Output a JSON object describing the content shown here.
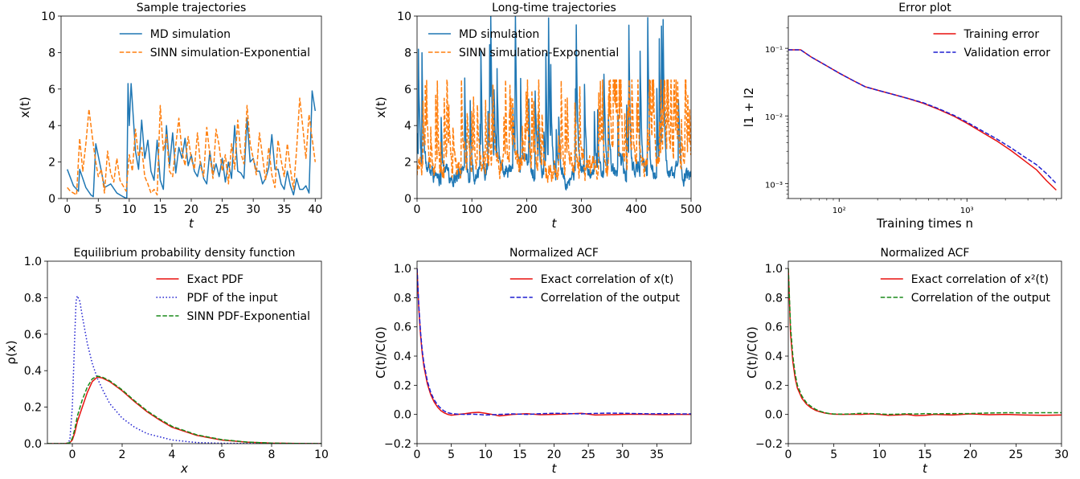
{
  "colors": {
    "md": "#1f77b4",
    "sinn": "#ff7f0e",
    "red": "#e8110f",
    "blue": "#1f1fd0",
    "green": "#1a8a1a"
  },
  "chart_data": [
    {
      "type": "line",
      "title": "Sample trajectories",
      "xlabel": "t",
      "ylabel": "x(t)",
      "xlim": [
        -1,
        41
      ],
      "ylim": [
        0,
        10
      ],
      "xticks": [
        0,
        5,
        10,
        15,
        20,
        25,
        30,
        35,
        40
      ],
      "yticks": [
        0,
        2,
        4,
        6,
        8,
        10
      ],
      "grid": false,
      "legend": "top-right",
      "series": [
        {
          "name": "MD simulation",
          "color": "md",
          "style": "solid",
          "x": [
            0,
            1,
            1.8,
            2,
            2.5,
            3,
            3.8,
            4.2,
            4.6,
            5.5,
            6,
            7,
            8,
            9,
            9.6,
            9.8,
            10,
            10.3,
            11,
            11.5,
            12,
            12.5,
            13,
            13.5,
            14,
            14.5,
            15,
            15.5,
            16,
            16.5,
            17,
            17.5,
            18,
            18.5,
            19,
            19.5,
            20,
            20.5,
            21,
            21.5,
            22,
            22.5,
            23,
            23.5,
            24,
            24.5,
            25,
            25.5,
            26,
            26.5,
            27,
            27.5,
            28,
            28.5,
            29,
            29.5,
            30,
            30.5,
            31,
            31.5,
            32,
            32.5,
            33,
            33.5,
            34,
            34.5,
            35,
            35.5,
            36,
            36.5,
            37,
            37.5,
            38,
            38.5,
            39,
            39.5,
            40
          ],
          "y": [
            1.6,
            0.7,
            0.4,
            1.6,
            1.1,
            0.6,
            0.2,
            0.1,
            3.0,
            1.5,
            0.6,
            0.8,
            0.3,
            0.1,
            0.0,
            6.3,
            4.0,
            6.3,
            2.6,
            1.6,
            4.3,
            2.2,
            3.2,
            1.5,
            1.0,
            3.2,
            1.0,
            0.5,
            4.0,
            1.8,
            3.6,
            1.4,
            2.8,
            2.2,
            3.3,
            1.8,
            2.4,
            1.5,
            1.2,
            2.0,
            1.1,
            0.8,
            2.6,
            1.3,
            1.9,
            1.2,
            2.2,
            0.9,
            2.0,
            1.1,
            4.0,
            1.5,
            1.4,
            1.1,
            4.4,
            2.0,
            2.2,
            1.5,
            1.5,
            0.8,
            1.1,
            1.7,
            3.5,
            1.6,
            1.6,
            0.8,
            0.5,
            1.5,
            0.7,
            0.2,
            1.1,
            0.5,
            0.5,
            0.7,
            0.3,
            5.9,
            4.8
          ]
        },
        {
          "name": "SINN simulation-Exponential",
          "color": "sinn",
          "style": "dashed",
          "x": [
            0,
            0.5,
            1,
            1.5,
            2,
            2.5,
            3,
            3.5,
            4,
            4.5,
            5,
            5.5,
            6,
            6.5,
            7,
            7.5,
            8,
            8.5,
            9,
            9.5,
            10,
            10.5,
            11,
            11.5,
            12,
            12.5,
            13,
            13.5,
            14,
            14.5,
            15,
            15.5,
            16,
            16.5,
            17,
            17.5,
            18,
            18.5,
            19,
            19.5,
            20,
            20.5,
            21,
            21.5,
            22,
            22.5,
            23,
            23.5,
            24,
            24.5,
            25,
            25.5,
            26,
            26.5,
            27,
            27.5,
            28,
            28.5,
            29,
            29.5,
            30,
            30.5,
            31,
            31.5,
            32,
            32.5,
            33,
            33.5,
            34,
            34.5,
            35,
            35.5,
            36,
            36.5,
            37,
            37.5,
            38,
            38.5,
            39,
            39.5,
            40
          ],
          "y": [
            0.6,
            0.4,
            0.3,
            0.2,
            3.3,
            1.5,
            3.0,
            4.9,
            3.5,
            2.2,
            1.2,
            1.6,
            0.3,
            2.6,
            1.4,
            0.9,
            2.2,
            1.0,
            0.7,
            0.4,
            2.4,
            1.5,
            3.8,
            2.3,
            2.8,
            1.2,
            0.8,
            0.3,
            0.5,
            0.2,
            5.1,
            2.6,
            3.5,
            1.5,
            1.2,
            2.9,
            4.4,
            2.6,
            1.8,
            3.4,
            2.2,
            1.6,
            3.6,
            1.8,
            1.2,
            3.9,
            2.4,
            1.1,
            3.8,
            2.9,
            1.5,
            2.4,
            0.8,
            3.0,
            1.6,
            4.3,
            2.5,
            1.9,
            5.1,
            3.0,
            2.2,
            1.3,
            3.6,
            2.3,
            1.0,
            2.8,
            1.3,
            0.6,
            3.2,
            2.1,
            1.2,
            3.0,
            1.6,
            0.5,
            2.7,
            5.5,
            3.9,
            2.2,
            4.6,
            3.3,
            2.0
          ]
        }
      ]
    },
    {
      "type": "line",
      "title": "Long-time trajectories",
      "xlabel": "t",
      "ylabel": "x(t)",
      "xlim": [
        0,
        500
      ],
      "ylim": [
        0,
        10
      ],
      "xticks": [
        0,
        100,
        200,
        300,
        400,
        500
      ],
      "yticks": [
        0,
        2,
        4,
        6,
        8,
        10
      ],
      "grid": false,
      "legend": "top-left",
      "series": [
        {
          "name": "MD simulation",
          "color": "md",
          "style": "solid",
          "dense": "md"
        },
        {
          "name": "SINN simulation-Exponential",
          "color": "sinn",
          "style": "dashed",
          "dense": "sinn"
        }
      ]
    },
    {
      "type": "line",
      "title": "Error plot",
      "xlabel": "Training times n",
      "ylabel": "l1 + l2",
      "xscale": "log",
      "yscale": "log",
      "xlim": [
        40,
        5500
      ],
      "ylim": [
        0.0006,
        0.3
      ],
      "xticks": [
        100,
        1000
      ],
      "xticklabels": [
        "10²",
        "10³"
      ],
      "yticks": [
        0.001,
        0.01,
        0.1
      ],
      "yticklabels": [
        "10⁻³",
        "10⁻²",
        "10⁻¹"
      ],
      "grid": false,
      "legend": "top-right",
      "series": [
        {
          "name": "Training error",
          "color": "red",
          "style": "solid",
          "x": [
            40,
            50,
            60,
            80,
            100,
            130,
            160,
            200,
            260,
            350,
            450,
            600,
            800,
            1000,
            1300,
            1700,
            2200,
            2800,
            3500,
            4200,
            5000
          ],
          "y": [
            0.095,
            0.095,
            0.075,
            0.055,
            0.043,
            0.033,
            0.027,
            0.024,
            0.021,
            0.018,
            0.0155,
            0.0125,
            0.0098,
            0.0078,
            0.0058,
            0.0043,
            0.0031,
            0.0022,
            0.0016,
            0.0011,
            0.0008
          ]
        },
        {
          "name": "Validation error",
          "color": "blue",
          "style": "dashed",
          "x": [
            40,
            50,
            60,
            80,
            100,
            130,
            160,
            200,
            260,
            350,
            450,
            600,
            800,
            1000,
            1300,
            1700,
            2200,
            2800,
            3500,
            4200,
            5000
          ],
          "y": [
            0.095,
            0.095,
            0.075,
            0.055,
            0.043,
            0.033,
            0.027,
            0.024,
            0.021,
            0.018,
            0.0158,
            0.0128,
            0.0101,
            0.0081,
            0.0061,
            0.0046,
            0.0034,
            0.0025,
            0.0019,
            0.0014,
            0.001
          ]
        }
      ]
    },
    {
      "type": "line",
      "title": "Equilibrium probability density function",
      "xlabel": "x",
      "ylabel": "ρ(x)",
      "xlim": [
        -1,
        10
      ],
      "ylim": [
        0,
        1.0
      ],
      "xticks": [
        0,
        2,
        4,
        6,
        8,
        10
      ],
      "yticks": [
        0.0,
        0.2,
        0.4,
        0.6,
        0.8,
        1.0
      ],
      "ytickformat": 1,
      "grid": false,
      "legend": "top-right",
      "series": [
        {
          "name": "Exact PDF",
          "color": "red",
          "style": "solid",
          "x": [
            -1,
            -0.3,
            -0.1,
            0,
            0.1,
            0.2,
            0.4,
            0.6,
            0.8,
            1.0,
            1.2,
            1.5,
            2,
            2.5,
            3,
            3.5,
            4,
            5,
            6,
            7,
            8,
            9,
            10
          ],
          "y": [
            0,
            0,
            0.005,
            0.02,
            0.06,
            0.12,
            0.2,
            0.28,
            0.34,
            0.365,
            0.36,
            0.34,
            0.29,
            0.23,
            0.175,
            0.13,
            0.09,
            0.045,
            0.02,
            0.008,
            0.003,
            0.001,
            0
          ]
        },
        {
          "name": "PDF of the input",
          "color": "blue",
          "style": "dotted",
          "x": [
            -1,
            -0.2,
            -0.1,
            0,
            0.1,
            0.15,
            0.2,
            0.3,
            0.4,
            0.6,
            0.8,
            1.0,
            1.2,
            1.5,
            2,
            2.5,
            3,
            4,
            5,
            6,
            8,
            10
          ],
          "y": [
            0,
            0,
            0.02,
            0.2,
            0.6,
            0.78,
            0.81,
            0.78,
            0.7,
            0.55,
            0.44,
            0.36,
            0.3,
            0.22,
            0.14,
            0.09,
            0.055,
            0.02,
            0.006,
            0.002,
            0,
            0
          ]
        },
        {
          "name": "SINN PDF-Exponential",
          "color": "green",
          "style": "dashed",
          "x": [
            -1,
            -0.3,
            -0.1,
            0,
            0.1,
            0.2,
            0.4,
            0.6,
            0.8,
            1.0,
            1.2,
            1.5,
            2,
            2.5,
            3,
            3.5,
            4,
            5,
            6,
            7,
            8,
            9,
            10
          ],
          "y": [
            0,
            0,
            0.005,
            0.03,
            0.08,
            0.15,
            0.24,
            0.31,
            0.355,
            0.37,
            0.365,
            0.345,
            0.295,
            0.235,
            0.18,
            0.135,
            0.095,
            0.048,
            0.022,
            0.009,
            0.003,
            0.001,
            0
          ]
        }
      ]
    },
    {
      "type": "line",
      "title": "Normalized ACF",
      "xlabel": "t",
      "ylabel": "C(t)/C(0)",
      "xlim": [
        0,
        40
      ],
      "ylim": [
        -0.2,
        1.05
      ],
      "xticks": [
        0,
        5,
        10,
        15,
        20,
        25,
        30,
        35
      ],
      "yticks": [
        -0.2,
        0.0,
        0.2,
        0.4,
        0.6,
        0.8,
        1.0
      ],
      "ytickformat": 1,
      "grid": false,
      "legend": "top-right",
      "series": [
        {
          "name": "Exact correlation of x(t)",
          "color": "red",
          "style": "solid",
          "x": [
            0,
            0.25,
            0.5,
            0.75,
            1,
            1.5,
            2,
            2.5,
            3,
            3.5,
            4,
            4.5,
            5,
            6,
            7,
            8,
            9,
            10,
            11,
            12,
            13,
            14,
            16,
            18,
            20,
            22,
            24,
            26,
            28,
            30,
            32,
            34,
            36,
            38,
            40
          ],
          "y": [
            1.0,
            0.73,
            0.55,
            0.42,
            0.33,
            0.21,
            0.135,
            0.085,
            0.05,
            0.025,
            0.01,
            0.0,
            -0.005,
            0.0,
            0.005,
            0.012,
            0.015,
            0.008,
            0.0,
            -0.01,
            -0.005,
            0.0,
            0.005,
            -0.002,
            0.0,
            0.004,
            0.008,
            -0.004,
            -0.002,
            0.0,
            0.002,
            0.0,
            -0.002,
            0.0,
            0.0
          ]
        },
        {
          "name": "Correlation of the output",
          "color": "blue",
          "style": "dashed",
          "x": [
            0,
            0.25,
            0.5,
            0.75,
            1,
            1.5,
            2,
            2.5,
            3,
            3.5,
            4,
            4.5,
            5,
            6,
            7,
            8,
            9,
            10,
            11,
            12,
            13,
            14,
            16,
            18,
            20,
            22,
            24,
            26,
            28,
            30,
            32,
            34,
            36,
            38,
            40
          ],
          "y": [
            1.0,
            0.75,
            0.57,
            0.44,
            0.35,
            0.23,
            0.15,
            0.1,
            0.065,
            0.04,
            0.022,
            0.012,
            0.006,
            0.002,
            0.0,
            0.002,
            0.0,
            -0.004,
            -0.002,
            0.0,
            0.002,
            0.004,
            0.0,
            0.005,
            0.008,
            0.006,
            0.004,
            0.007,
            0.009,
            0.008,
            0.006,
            0.004,
            0.006,
            0.004,
            0.004
          ]
        }
      ]
    },
    {
      "type": "line",
      "title": "Normalized ACF",
      "xlabel": "t",
      "ylabel": "C(t)/C(0)",
      "xlim": [
        0,
        30
      ],
      "ylim": [
        -0.2,
        1.05
      ],
      "xticks": [
        0,
        5,
        10,
        15,
        20,
        25,
        30
      ],
      "yticks": [
        -0.2,
        0.0,
        0.2,
        0.4,
        0.6,
        0.8,
        1.0
      ],
      "ytickformat": 1,
      "grid": false,
      "legend": "top-right",
      "series": [
        {
          "name": "Exact correlation of x²(t)",
          "color": "red",
          "style": "solid",
          "x": [
            0,
            0.25,
            0.5,
            0.75,
            1,
            1.5,
            2,
            2.5,
            3,
            3.5,
            4,
            4.5,
            5,
            6,
            7,
            8,
            9,
            10,
            11,
            12,
            13,
            14,
            15,
            16,
            18,
            20,
            22,
            24,
            26,
            28,
            30
          ],
          "y": [
            1.0,
            0.55,
            0.36,
            0.25,
            0.18,
            0.11,
            0.07,
            0.045,
            0.028,
            0.018,
            0.01,
            0.005,
            0.002,
            0.0,
            0.002,
            0.0,
            0.004,
            0.0,
            -0.006,
            -0.004,
            0.0,
            -0.008,
            -0.006,
            0.0,
            -0.004,
            0.004,
            -0.002,
            0.0,
            -0.004,
            -0.006,
            -0.004
          ]
        },
        {
          "name": "Correlation of the output",
          "color": "green",
          "style": "dashed",
          "x": [
            0,
            0.25,
            0.5,
            0.75,
            1,
            1.5,
            2,
            2.5,
            3,
            3.5,
            4,
            4.5,
            5,
            6,
            7,
            8,
            9,
            10,
            11,
            12,
            13,
            14,
            15,
            16,
            18,
            20,
            22,
            24,
            26,
            28,
            30
          ],
          "y": [
            1.0,
            0.6,
            0.4,
            0.28,
            0.2,
            0.125,
            0.08,
            0.055,
            0.035,
            0.022,
            0.012,
            0.006,
            0.003,
            0.002,
            0.004,
            0.008,
            0.006,
            0.004,
            0.0,
            0.002,
            0.005,
            0.003,
            0.006,
            0.004,
            0.006,
            0.006,
            0.01,
            0.012,
            0.01,
            0.012,
            0.012
          ]
        }
      ]
    }
  ]
}
